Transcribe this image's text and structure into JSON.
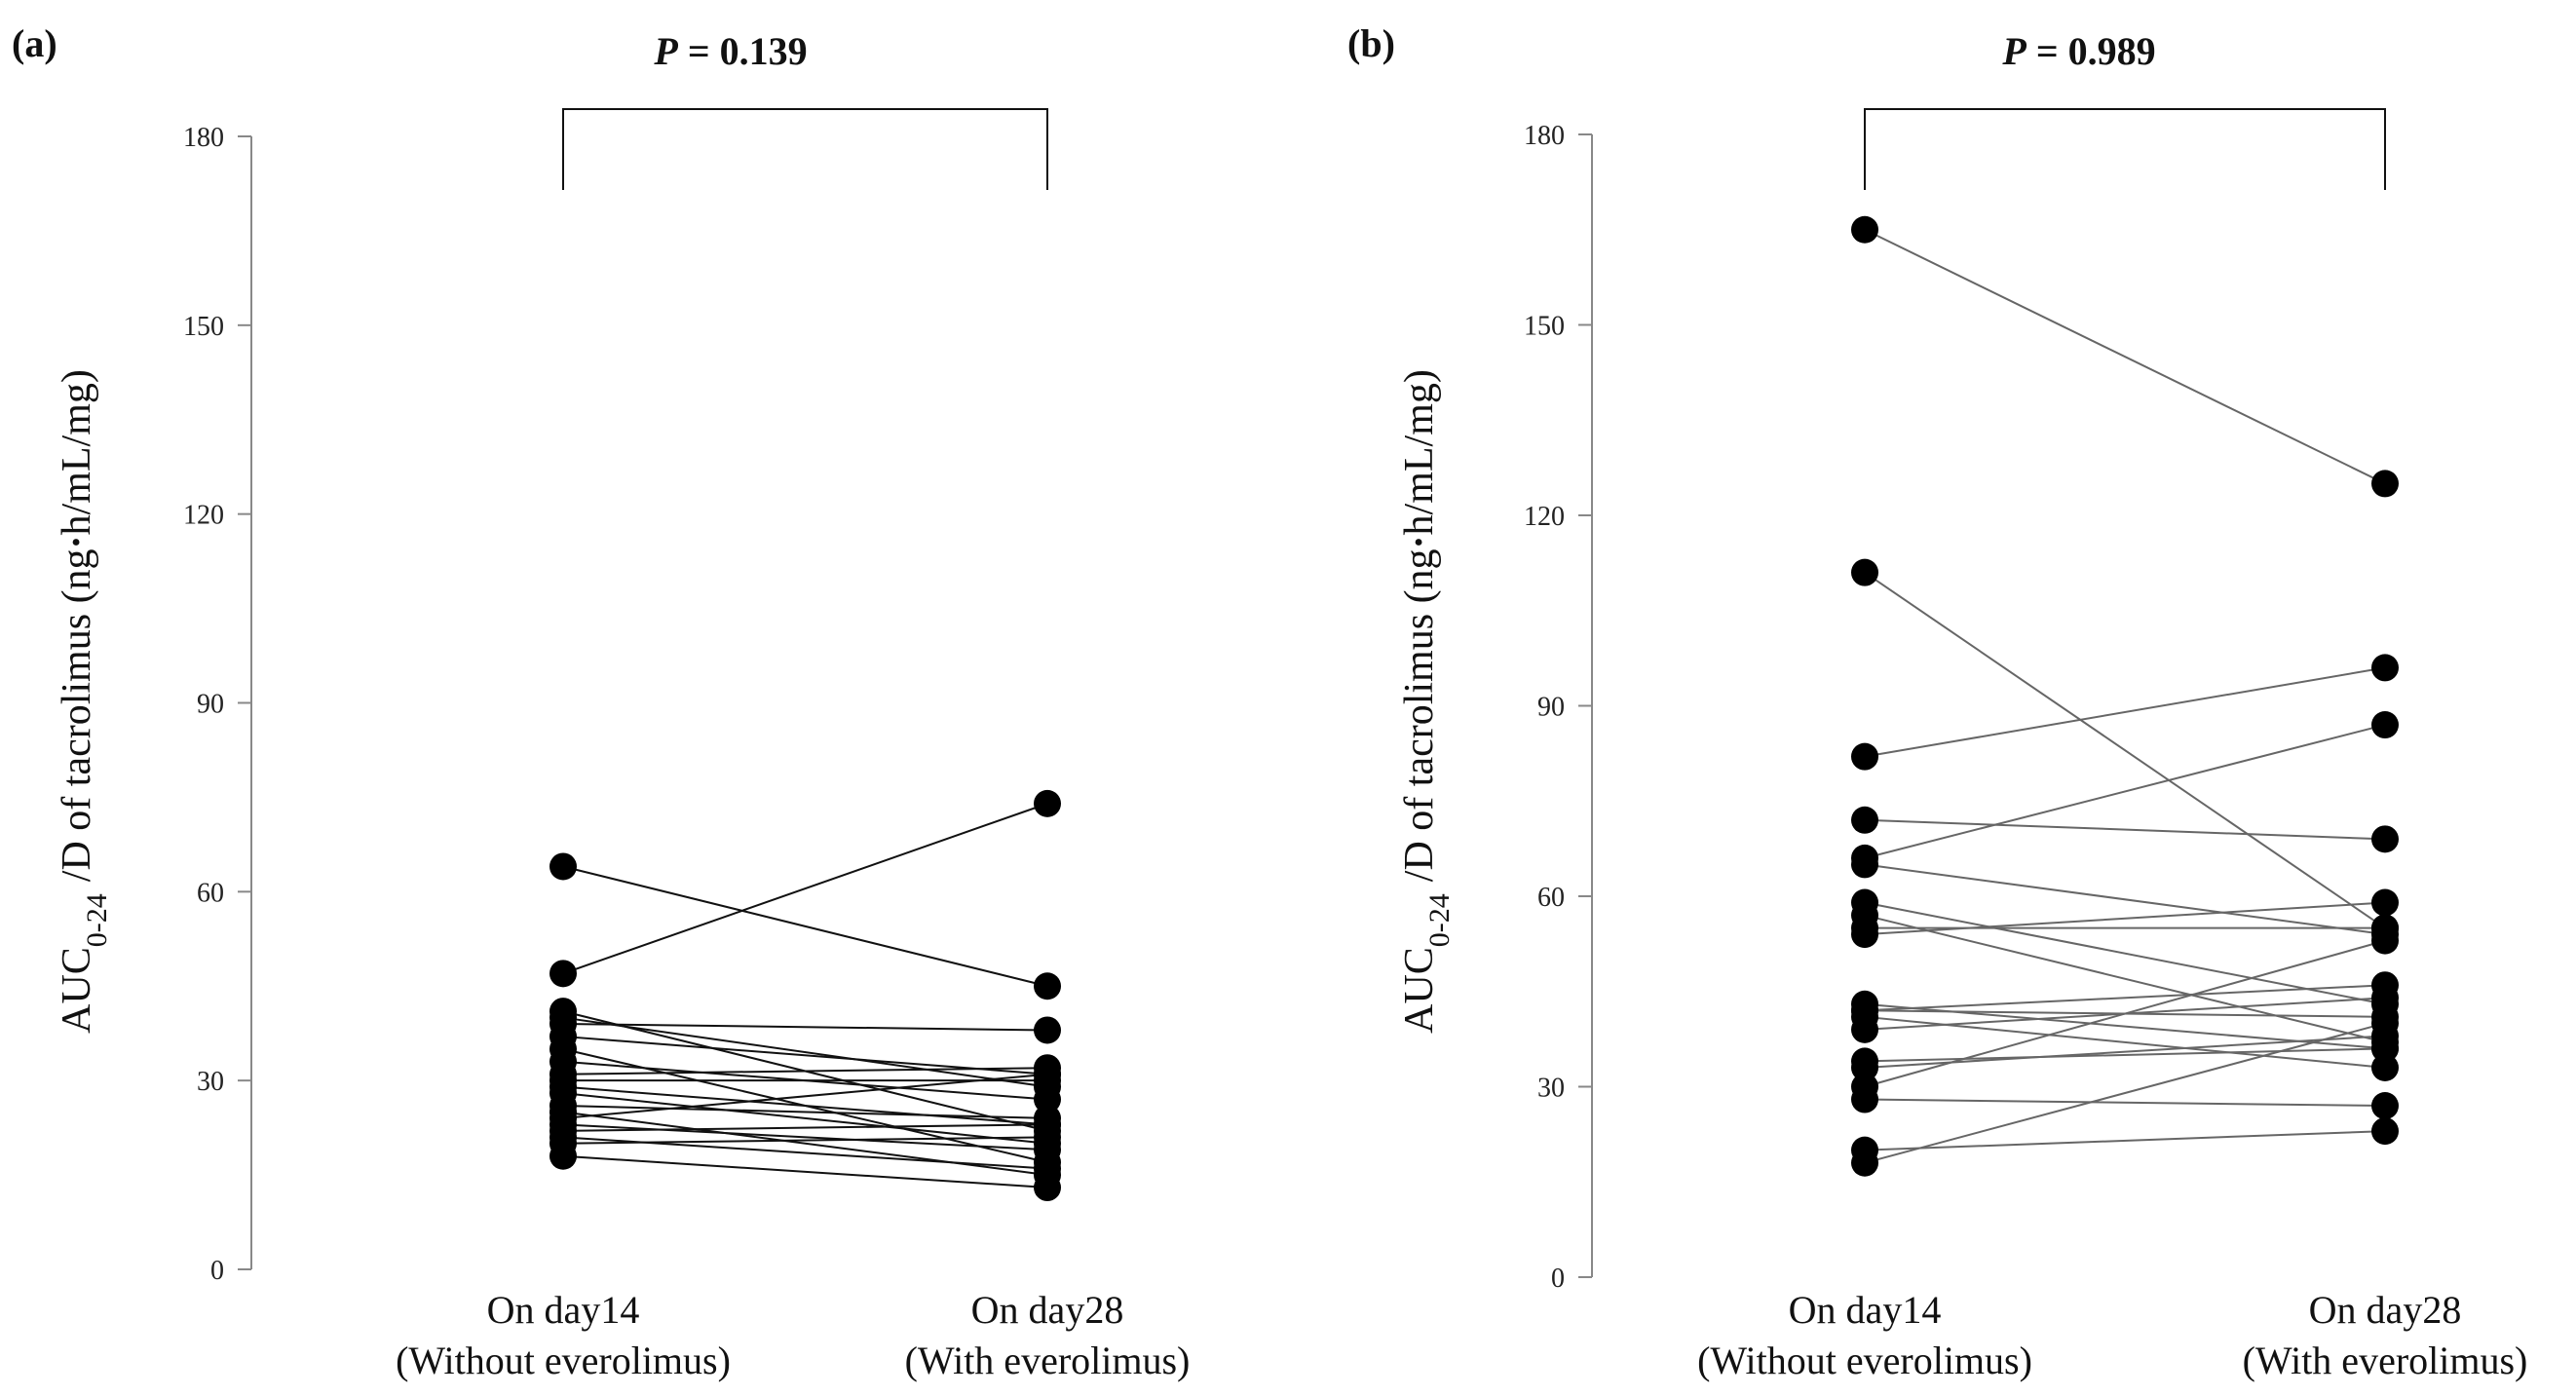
{
  "chart_data": [
    {
      "type": "line",
      "panel": "(a)",
      "p_value": "0.139",
      "p_prefix": "P",
      "ylabel": "AUC0-24 /D of tacrolimus (ng·h/mL/mg)",
      "ylabel_main": "AUC",
      "ylabel_sub": "0-24",
      "ylabel_rest": "/D of tacrolimus  (ng",
      "ylabel_dot": "·",
      "ylabel_units": "h/mL/mg)",
      "ylim": [
        0,
        180
      ],
      "yticks": [
        "0",
        "30",
        "60",
        "90",
        "120",
        "150",
        "180"
      ],
      "ytick_values": [
        0,
        30,
        60,
        90,
        120,
        150,
        180
      ],
      "categories": [
        {
          "line1": "On day14",
          "line2": "(Without  everolimus)"
        },
        {
          "line1": "On day28",
          "line2": "(With everolimus)"
        }
      ],
      "pairs": [
        [
          64,
          45
        ],
        [
          47,
          74
        ],
        [
          41,
          22
        ],
        [
          40,
          29
        ],
        [
          39,
          38
        ],
        [
          37,
          31
        ],
        [
          35,
          17
        ],
        [
          33,
          27
        ],
        [
          31,
          32
        ],
        [
          30,
          30
        ],
        [
          29,
          23
        ],
        [
          28,
          20
        ],
        [
          26,
          24
        ],
        [
          25,
          15
        ],
        [
          24,
          31
        ],
        [
          23,
          19
        ],
        [
          22,
          23
        ],
        [
          21,
          16
        ],
        [
          20,
          21
        ],
        [
          18,
          13
        ]
      ]
    },
    {
      "type": "line",
      "panel": "(b)",
      "p_value": "0.989",
      "p_prefix": "P",
      "ylabel": "AUC0-24 /D of tacrolimus (ng·h/mL/mg)",
      "ylabel_main": "AUC",
      "ylabel_sub": "0-24",
      "ylabel_rest": "/D of tacrolimus  (ng",
      "ylabel_dot": "·",
      "ylabel_units": "h/mL/mg)",
      "ylim": [
        0,
        180
      ],
      "yticks": [
        "0",
        "30",
        "60",
        "90",
        "120",
        "150",
        "180"
      ],
      "ytick_values": [
        0,
        30,
        60,
        90,
        120,
        150,
        180
      ],
      "categories": [
        {
          "line1": "On day14",
          "line2": "(Without  everolimus)"
        },
        {
          "line1": "On day28",
          "line2": "(With everolimus)"
        }
      ],
      "pairs": [
        [
          165,
          125
        ],
        [
          111,
          55
        ],
        [
          82,
          96
        ],
        [
          72,
          69
        ],
        [
          66,
          87
        ],
        [
          65,
          54
        ],
        [
          59,
          43
        ],
        [
          57,
          37
        ],
        [
          55,
          55
        ],
        [
          54,
          59
        ],
        [
          43,
          36
        ],
        [
          42,
          46
        ],
        [
          42,
          41
        ],
        [
          41,
          33
        ],
        [
          39,
          44
        ],
        [
          34,
          36
        ],
        [
          33,
          38
        ],
        [
          30,
          53
        ],
        [
          28,
          27
        ],
        [
          20,
          23
        ],
        [
          18,
          40
        ]
      ]
    }
  ]
}
